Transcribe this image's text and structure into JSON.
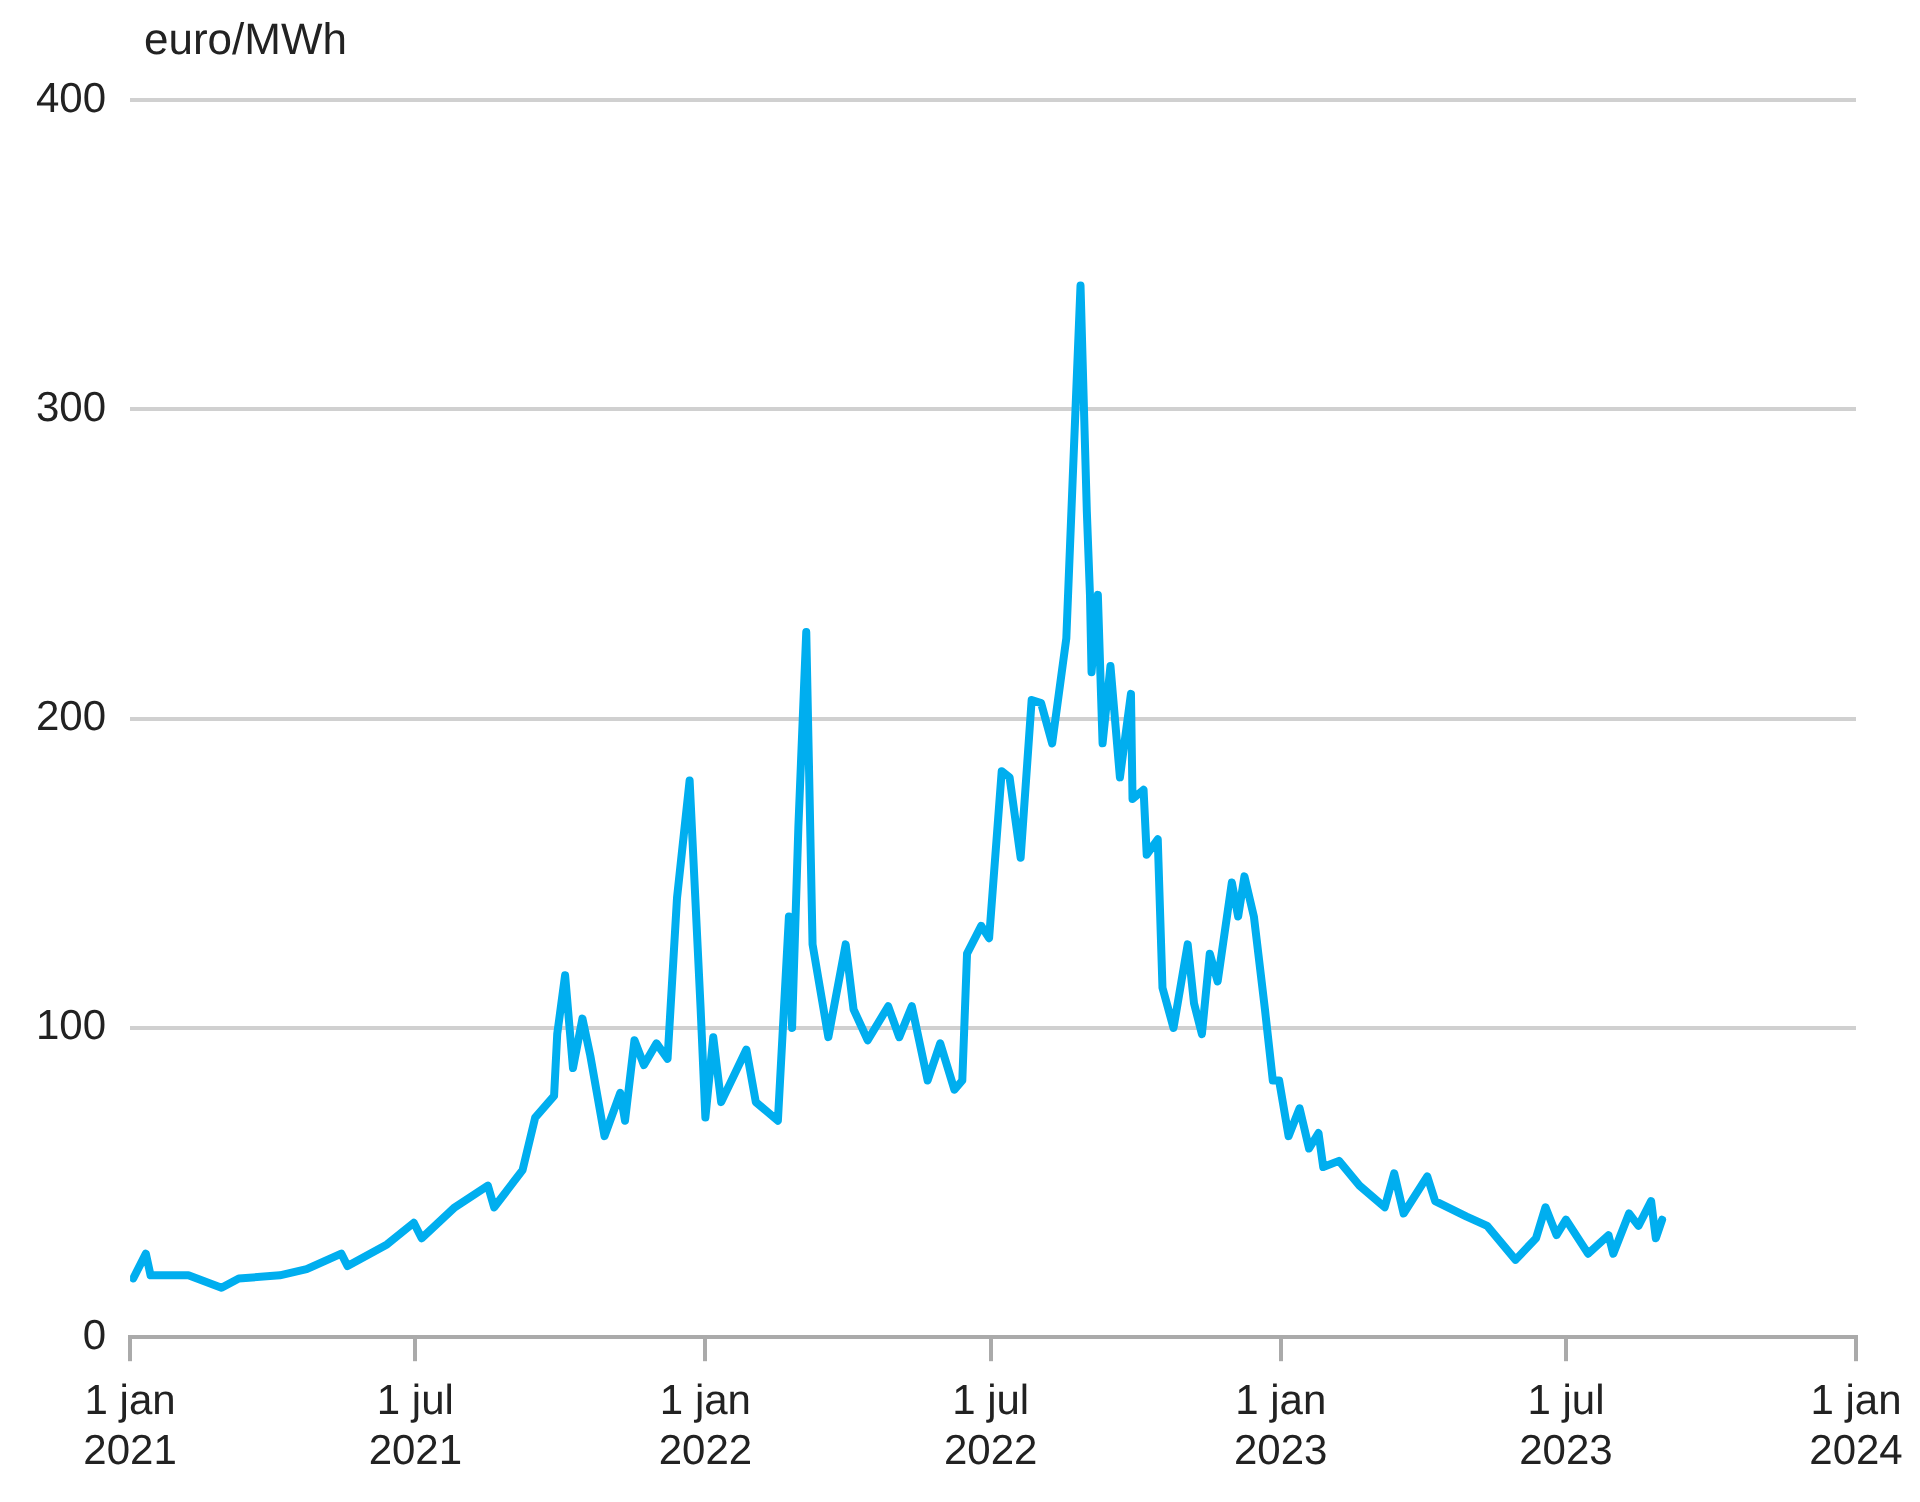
{
  "chart_data": {
    "type": "line",
    "ylabel": "euro/MWh",
    "grid": "y",
    "line_style": "solid",
    "xlim": [
      "2021-01-01",
      "2024-01-01"
    ],
    "xticks": [
      {
        "value": "2021-01-01",
        "label": "1 jan 2021"
      },
      {
        "value": "2021-07-01",
        "label": "1 jul 2021"
      },
      {
        "value": "2022-01-01",
        "label": "1 jan 2022"
      },
      {
        "value": "2022-07-01",
        "label": "1 jul 2022"
      },
      {
        "value": "2023-01-01",
        "label": "1 jan 2023"
      },
      {
        "value": "2023-07-01",
        "label": "1 jul 2023"
      },
      {
        "value": "2024-01-01",
        "label": "1 jan 2024"
      }
    ],
    "ylim": [
      0,
      400
    ],
    "yticks": [
      0,
      100,
      200,
      300,
      400
    ],
    "series": [
      {
        "color": "#00aeef",
        "x": [
          "2021-01-03",
          "2021-01-11",
          "2021-01-14",
          "2021-01-27",
          "2021-02-07",
          "2021-02-28",
          "2021-03-11",
          "2021-04-06",
          "2021-04-23",
          "2021-05-15",
          "2021-05-19",
          "2021-06-13",
          "2021-06-30",
          "2021-07-05",
          "2021-07-26",
          "2021-08-16",
          "2021-08-20",
          "2021-09-07",
          "2021-09-15",
          "2021-09-27",
          "2021-09-29",
          "2021-10-04",
          "2021-10-09",
          "2021-10-15",
          "2021-10-20",
          "2021-10-29",
          "2021-11-08",
          "2021-11-11",
          "2021-11-17",
          "2021-11-23",
          "2021-12-01",
          "2021-12-08",
          "2021-12-14",
          "2021-12-22",
          "2021-12-29",
          "2022-01-01",
          "2022-01-06",
          "2022-01-11",
          "2022-01-27",
          "2022-02-02",
          "2022-02-16",
          "2022-02-23",
          "2022-02-25",
          "2022-03-01",
          "2022-03-06",
          "2022-03-10",
          "2022-03-20",
          "2022-03-31",
          "2022-04-05",
          "2022-04-14",
          "2022-04-27",
          "2022-05-04",
          "2022-05-12",
          "2022-05-22",
          "2022-05-30",
          "2022-06-08",
          "2022-06-13",
          "2022-06-16",
          "2022-06-25",
          "2022-06-30",
          "2022-07-08",
          "2022-07-13",
          "2022-07-20",
          "2022-07-27",
          "2022-08-02",
          "2022-08-09",
          "2022-08-18",
          "2022-08-22",
          "2022-08-27",
          "2022-08-31",
          "2022-09-02",
          "2022-09-03",
          "2022-09-07",
          "2022-09-10",
          "2022-09-15",
          "2022-09-21",
          "2022-09-28",
          "2022-09-29",
          "2022-10-06",
          "2022-10-08",
          "2022-10-15",
          "2022-10-18",
          "2022-10-25",
          "2022-11-03",
          "2022-11-07",
          "2022-11-12",
          "2022-11-17",
          "2022-11-22",
          "2022-12-01",
          "2022-12-05",
          "2022-12-09",
          "2022-12-15",
          "2022-12-22",
          "2022-12-27",
          "2022-12-31",
          "2023-01-06",
          "2023-01-13",
          "2023-01-19",
          "2023-01-25",
          "2023-01-28",
          "2023-02-07",
          "2023-02-20",
          "2023-03-08",
          "2023-03-14",
          "2023-03-20",
          "2023-04-04",
          "2023-04-09",
          "2023-04-29",
          "2023-05-12",
          "2023-05-30",
          "2023-06-12",
          "2023-06-18",
          "2023-06-25",
          "2023-07-01",
          "2023-07-15",
          "2023-07-28",
          "2023-07-31",
          "2023-08-10",
          "2023-08-16",
          "2023-08-24",
          "2023-08-27",
          "2023-08-31"
        ],
        "values": [
          19,
          27,
          20,
          20,
          20,
          16,
          19,
          20,
          22,
          27,
          23,
          30,
          37,
          32,
          42,
          49,
          42,
          54,
          71,
          78,
          98,
          117,
          87,
          103,
          91,
          65,
          79,
          70,
          96,
          88,
          95,
          90,
          142,
          180,
          106,
          71,
          97,
          76,
          93,
          76,
          70,
          136,
          100,
          165,
          228,
          127,
          97,
          127,
          106,
          96,
          107,
          97,
          107,
          83,
          95,
          80,
          83,
          124,
          133,
          129,
          183,
          181,
          155,
          206,
          205,
          192,
          226,
          277,
          340,
          267,
          240,
          215,
          240,
          192,
          217,
          181,
          208,
          174,
          177,
          156,
          161,
          113,
          100,
          127,
          108,
          98,
          124,
          115,
          147,
          136,
          149,
          136,
          106,
          83,
          83,
          65,
          74,
          61,
          66,
          55,
          57,
          49,
          42,
          53,
          40,
          52,
          44,
          39,
          36,
          25,
          32,
          42,
          33,
          38,
          27,
          33,
          27,
          40,
          36,
          44,
          32,
          38
        ]
      }
    ]
  }
}
